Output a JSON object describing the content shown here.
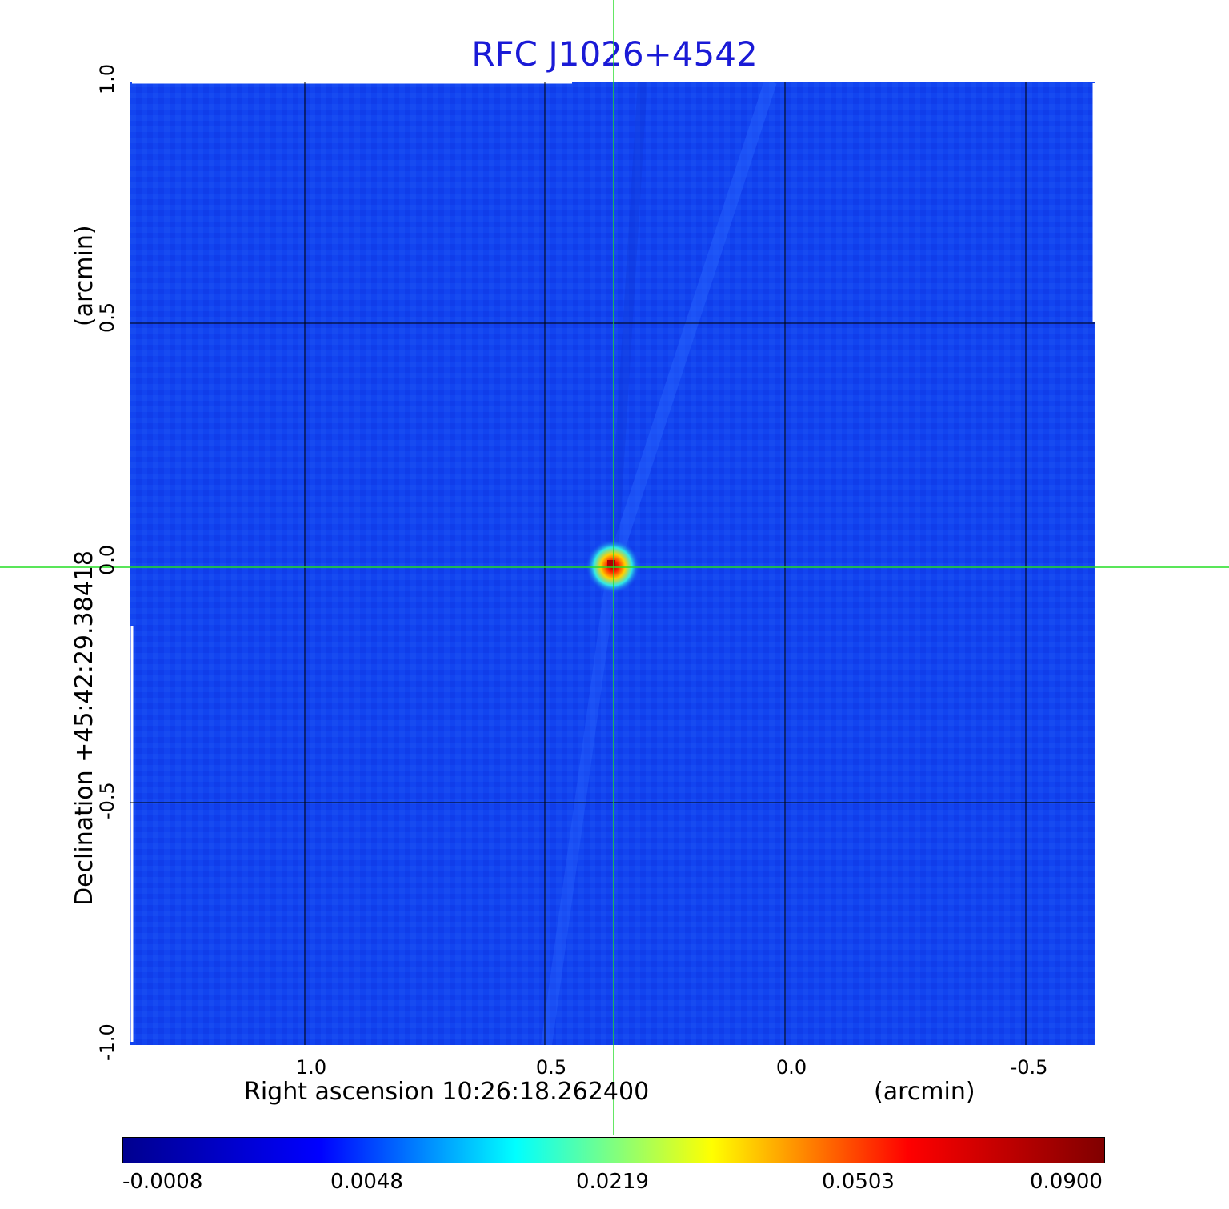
{
  "title": "RFC J1026+4542",
  "x_axis": {
    "label": "Right ascension  10:26:18.262400",
    "unit": "(arcmin)",
    "ticks": [
      "1.0",
      "0.5",
      "0.0",
      "-0.5"
    ]
  },
  "y_axis": {
    "label": "Declination  +45:42:29.38418",
    "unit": "(arcmin)",
    "ticks": [
      "1.0",
      "0.5",
      "0.0",
      "-0.5",
      "-1.0"
    ]
  },
  "colorbar": {
    "ticks": [
      "-0.0008",
      "0.0048",
      "0.0219",
      "0.0503",
      "0.0900"
    ],
    "colormap": [
      "#00008f",
      "#0000ff",
      "#00ffff",
      "#ffff00",
      "#ff0000",
      "#800000"
    ]
  },
  "image": {
    "background_color": "#1244f0",
    "grid_color": "#000000",
    "crosshair_color": "#22dd22",
    "source": "compact point source at map center"
  }
}
